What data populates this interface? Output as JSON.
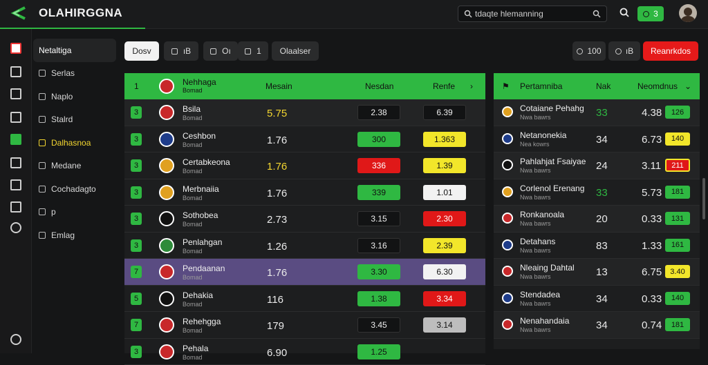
{
  "header": {
    "title": "OLAHIRGGNA",
    "search_value": "tdaqte hlemanning",
    "badge_text": "3"
  },
  "rail": {
    "icons": [
      "flag-icon",
      "calendar-icon",
      "chat-icon",
      "video-icon",
      "check-icon",
      "image-icon",
      "mail-icon",
      "grid-icon",
      "clock-icon"
    ],
    "bottom_icon": "help-icon"
  },
  "sidebar": {
    "items": [
      {
        "label": "Netaltiga",
        "icon": "league-icon",
        "state": "active"
      },
      {
        "label": "Serlas",
        "icon": "series-icon",
        "state": ""
      },
      {
        "label": "Naplo",
        "icon": "note-icon",
        "state": ""
      },
      {
        "label": "Stalrd",
        "icon": "stand-icon",
        "state": ""
      },
      {
        "label": "Dalhasnoa",
        "icon": "alert-icon",
        "state": "hl"
      },
      {
        "label": "Medane",
        "icon": "medal-icon",
        "state": ""
      },
      {
        "label": "Cochadagto",
        "icon": "calendar-icon",
        "state": ""
      },
      {
        "label": "p",
        "icon": "dot-icon",
        "state": ""
      },
      {
        "label": "Emlag",
        "icon": "tag-icon",
        "state": ""
      }
    ]
  },
  "tabs": [
    {
      "label": "Dosv",
      "icon": "",
      "active": true
    },
    {
      "label": "ıB",
      "icon": "filter-icon",
      "active": false
    },
    {
      "label": "Oı",
      "icon": "book-icon",
      "active": false
    },
    {
      "label": "1",
      "icon": "edit-icon",
      "active": false
    },
    {
      "label": "Olaalser",
      "icon": "",
      "active": false
    }
  ],
  "right_buttons": [
    {
      "label": "100",
      "icon": "eye-icon",
      "style": ""
    },
    {
      "label": "ıB",
      "icon": "eye-icon",
      "style": ""
    },
    {
      "label": "Reanrkdos",
      "icon": "",
      "style": "red"
    }
  ],
  "main_table": {
    "headers": {
      "rank": "1",
      "team": "Nehhaga",
      "team_sub": "Bomad",
      "col1": "Mesain",
      "col2": "Nesdan",
      "col3": "Renfe"
    },
    "rows": [
      {
        "rank": "3",
        "name": "Bsila",
        "sub": "Bomad",
        "val": "5.75",
        "val_color": "y",
        "o1": "2.38",
        "o1c": "c-dark",
        "o2": "6.39",
        "o2c": "c-dark",
        "crest": "",
        "row": "alt"
      },
      {
        "rank": "3",
        "name": "Ceshbon",
        "sub": "Bomad",
        "val": "1.76",
        "val_color": "",
        "o1": "300",
        "o1c": "c-green",
        "o2": "1.363",
        "o2c": "c-yellow",
        "crest": "b",
        "row": ""
      },
      {
        "rank": "3",
        "name": "Certabkeona",
        "sub": "Bomad",
        "val": "1.76",
        "val_color": "y",
        "o1": "336",
        "o1c": "c-red",
        "o2": "1.39",
        "o2c": "c-yellow",
        "crest": "y",
        "row": ""
      },
      {
        "rank": "3",
        "name": "Merbnaiia",
        "sub": "Bomad",
        "val": "1.76",
        "val_color": "",
        "o1": "339",
        "o1c": "c-green",
        "o2": "1.01",
        "o2c": "c-white",
        "crest": "y",
        "row": ""
      },
      {
        "rank": "3",
        "name": "Sothobea",
        "sub": "Bomad",
        "val": "2.73",
        "val_color": "",
        "o1": "3.15",
        "o1c": "c-dark",
        "o2": "2.30",
        "o2c": "c-red",
        "crest": "k",
        "row": ""
      },
      {
        "rank": "3",
        "name": "Penlahgan",
        "sub": "Bomad",
        "val": "1.26",
        "val_color": "",
        "o1": "3.16",
        "o1c": "c-dark",
        "o2": "2.39",
        "o2c": "c-yellow",
        "crest": "g",
        "row": ""
      },
      {
        "rank": "7",
        "name": "Pendaanan",
        "sub": "Bomad",
        "val": "1.76",
        "val_color": "",
        "o1": "3.30",
        "o1c": "c-green",
        "o2": "6.30",
        "o2c": "c-white",
        "crest": "",
        "row": "sel"
      },
      {
        "rank": "5",
        "name": "Dehakia",
        "sub": "Bomad",
        "val": "116",
        "val_color": "",
        "o1": "1.38",
        "o1c": "c-green",
        "o2": "3.34",
        "o2c": "c-red",
        "crest": "k",
        "row": ""
      },
      {
        "rank": "7",
        "name": "Rehehgga",
        "sub": "Bomad",
        "val": "179",
        "val_color": "",
        "o1": "3.45",
        "o1c": "c-dark",
        "o2": "3.14",
        "o2c": "c-grey",
        "crest": "",
        "row": ""
      },
      {
        "rank": "3",
        "name": "Pehala",
        "sub": "Bomad",
        "val": "6.90",
        "val_color": "",
        "o1": "1.25",
        "o1c": "c-green",
        "o2": "",
        "o2c": "c-dark",
        "crest": "",
        "row": ""
      }
    ]
  },
  "side_table": {
    "headers": {
      "col1": "Pertamniba",
      "col2": "Nak",
      "col3": "Neomdnus"
    },
    "rows": [
      {
        "name": "Cotaiane Pehahg",
        "sub": "Nwa bawrs",
        "num": "33",
        "num_green": true,
        "val": "4.38",
        "badge": "126",
        "badge_style": "c-green",
        "crest": "y"
      },
      {
        "name": "Netanonekia",
        "sub": "Nea kowrs",
        "num": "34",
        "num_green": false,
        "val": "6.73",
        "badge": "140",
        "badge_style": "c-yellow",
        "crest": "b"
      },
      {
        "name": "Pahlahjat Fsaiyae",
        "sub": "Nwa bawrs",
        "num": "24",
        "num_green": false,
        "val": "3.11",
        "badge": "211",
        "badge_style": "red",
        "crest": "k"
      },
      {
        "name": "Corlenol Erenang",
        "sub": "Nwa bawrs",
        "num": "33",
        "num_green": true,
        "val": "5.73",
        "badge": "181",
        "badge_style": "c-green",
        "crest": "y"
      },
      {
        "name": "Ronkanoala",
        "sub": "Nwa bawrs",
        "num": "20",
        "num_green": false,
        "val": "0.33",
        "badge": "131",
        "badge_style": "c-green",
        "crest": ""
      },
      {
        "name": "Detahans",
        "sub": "Nwa bawrs",
        "num": "83",
        "num_green": false,
        "val": "1.33",
        "badge": "161",
        "badge_style": "c-green",
        "crest": "b"
      },
      {
        "name": "Nleaing Dahtal",
        "sub": "Nwa bawrs",
        "num": "13",
        "num_green": false,
        "val": "6.75",
        "badge": "3.40",
        "badge_style": "c-yellow",
        "crest": ""
      },
      {
        "name": "Stendadea",
        "sub": "Nwa bawrs",
        "num": "34",
        "num_green": false,
        "val": "0.33",
        "badge": "140",
        "badge_style": "c-green",
        "crest": "b"
      },
      {
        "name": "Nenahandaia",
        "sub": "Nwa bawrs",
        "num": "34",
        "num_green": false,
        "val": "0.74",
        "badge": "181",
        "badge_style": "c-green",
        "crest": ""
      }
    ]
  }
}
